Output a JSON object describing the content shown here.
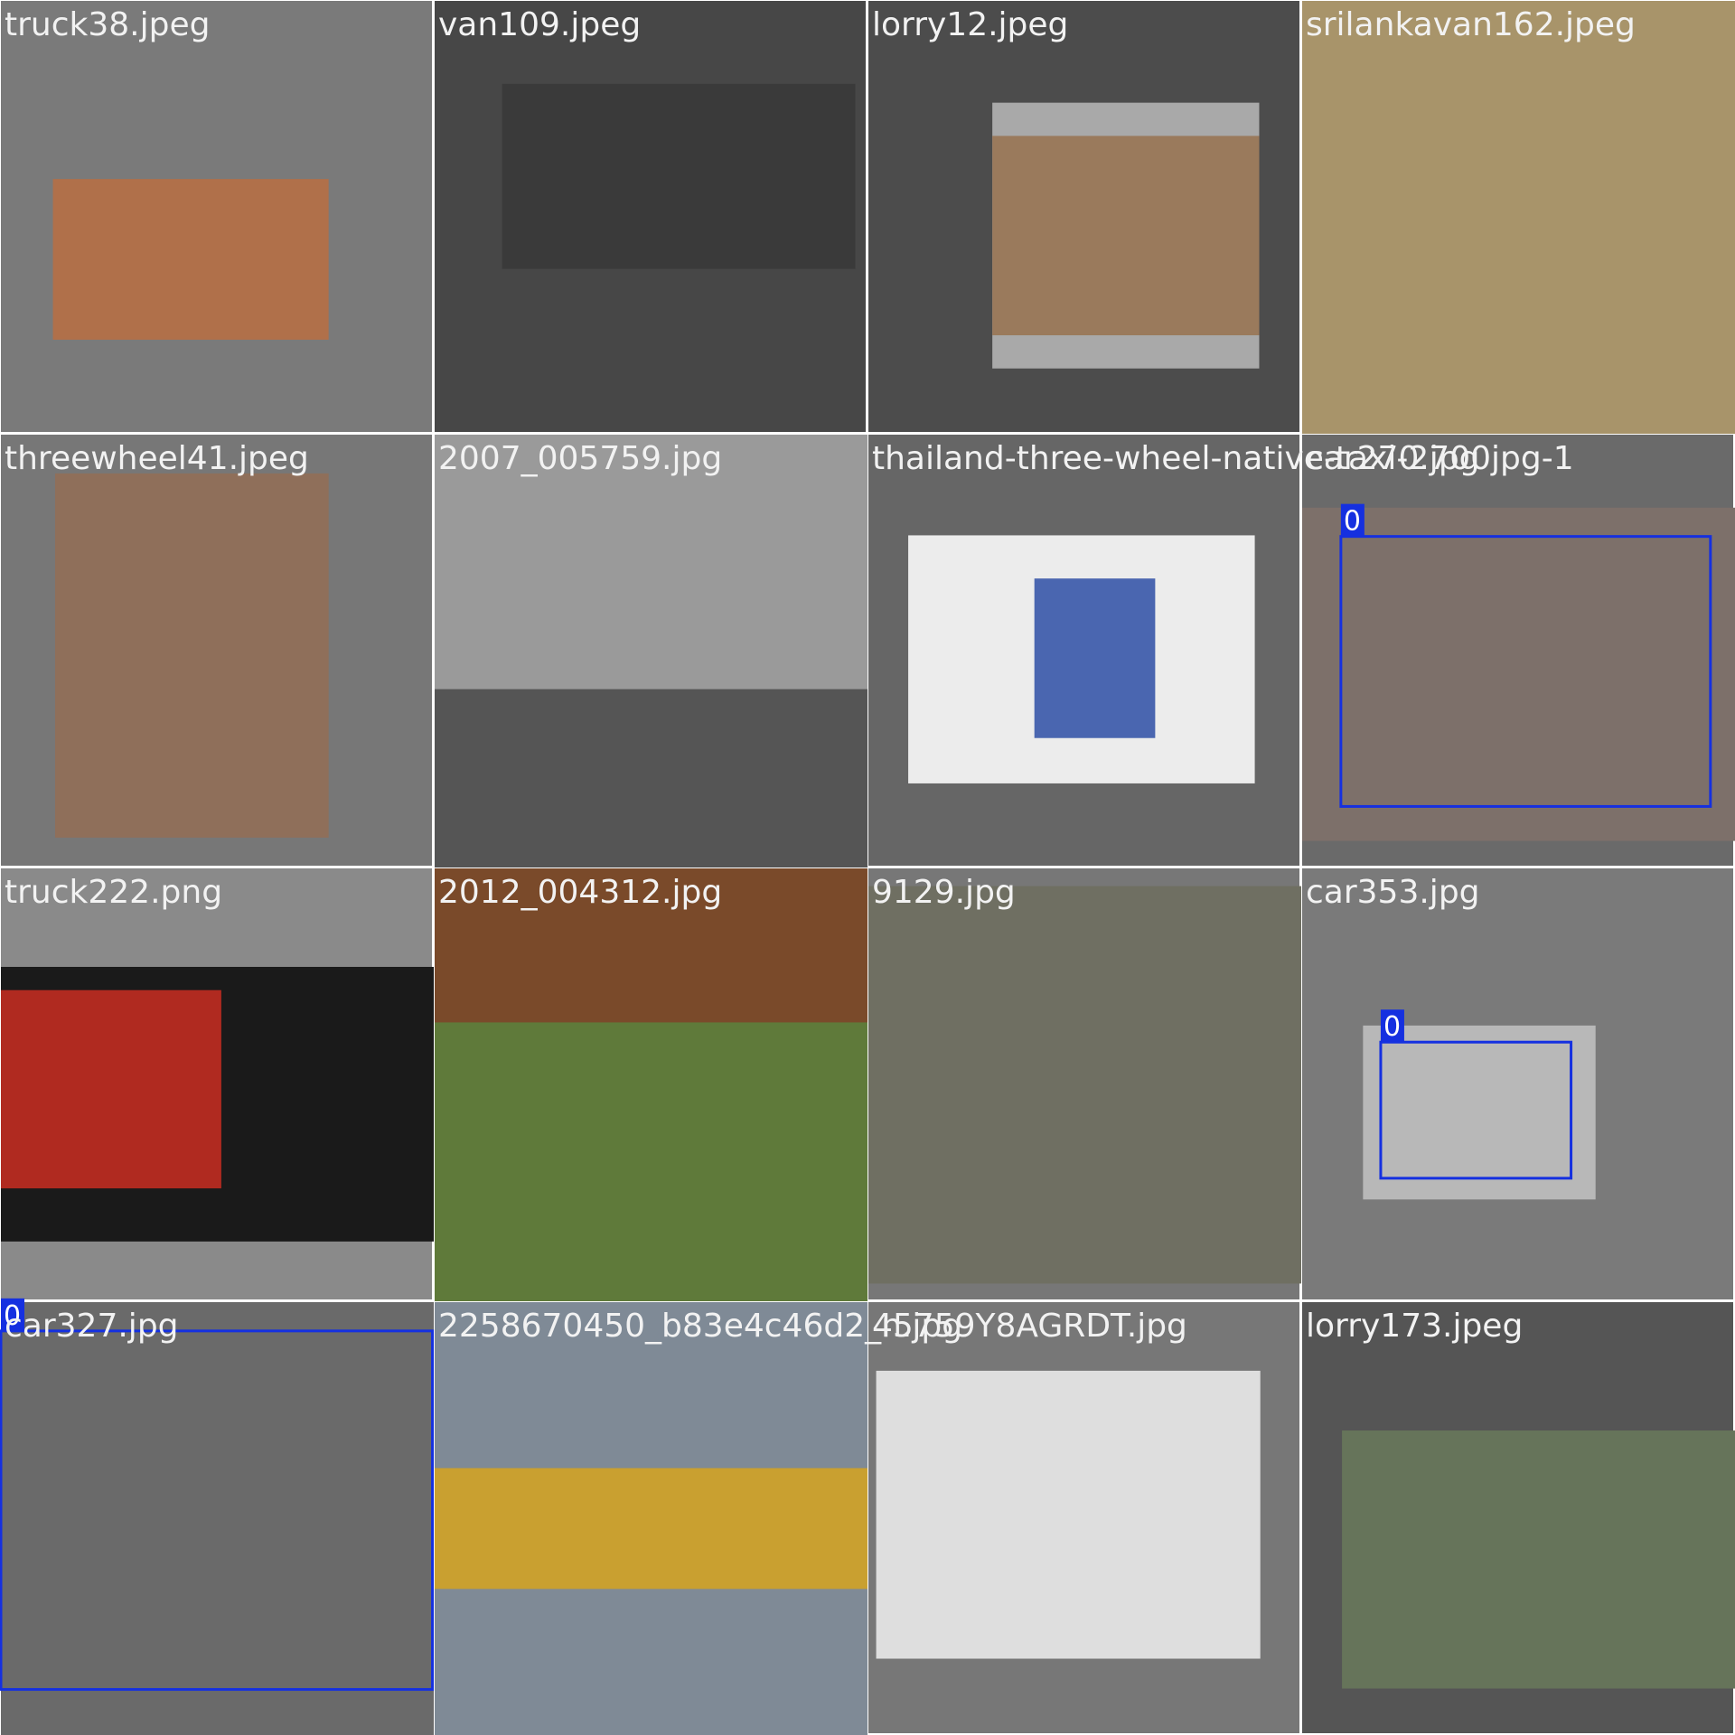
{
  "tiles": [
    {
      "filename": "truck38.jpeg"
    },
    {
      "filename": "van109.jpeg"
    },
    {
      "filename": "lorry12.jpeg"
    },
    {
      "filename": "srilankavan162.jpeg"
    },
    {
      "filename": "threewheel41.jpeg"
    },
    {
      "filename": "2007_005759.jpg"
    },
    {
      "filename": "thailand-three-wheel-native-taxi-2700jpg-1"
    },
    {
      "filename": "car270.jpg",
      "detections": [
        {
          "label": "0"
        }
      ]
    },
    {
      "filename": "truck222.png"
    },
    {
      "filename": "2012_004312.jpg"
    },
    {
      "filename": "9129.jpg"
    },
    {
      "filename": "car353.jpg",
      "detections": [
        {
          "label": "0"
        }
      ]
    },
    {
      "filename": "car327.jpg",
      "detections": [
        {
          "label": "0"
        }
      ]
    },
    {
      "filename": "2258670450_b83e4c46d2_n.jpg"
    },
    {
      "filename": "45759Y8AGRDT.jpg"
    },
    {
      "filename": "lorry173.jpeg"
    }
  ]
}
